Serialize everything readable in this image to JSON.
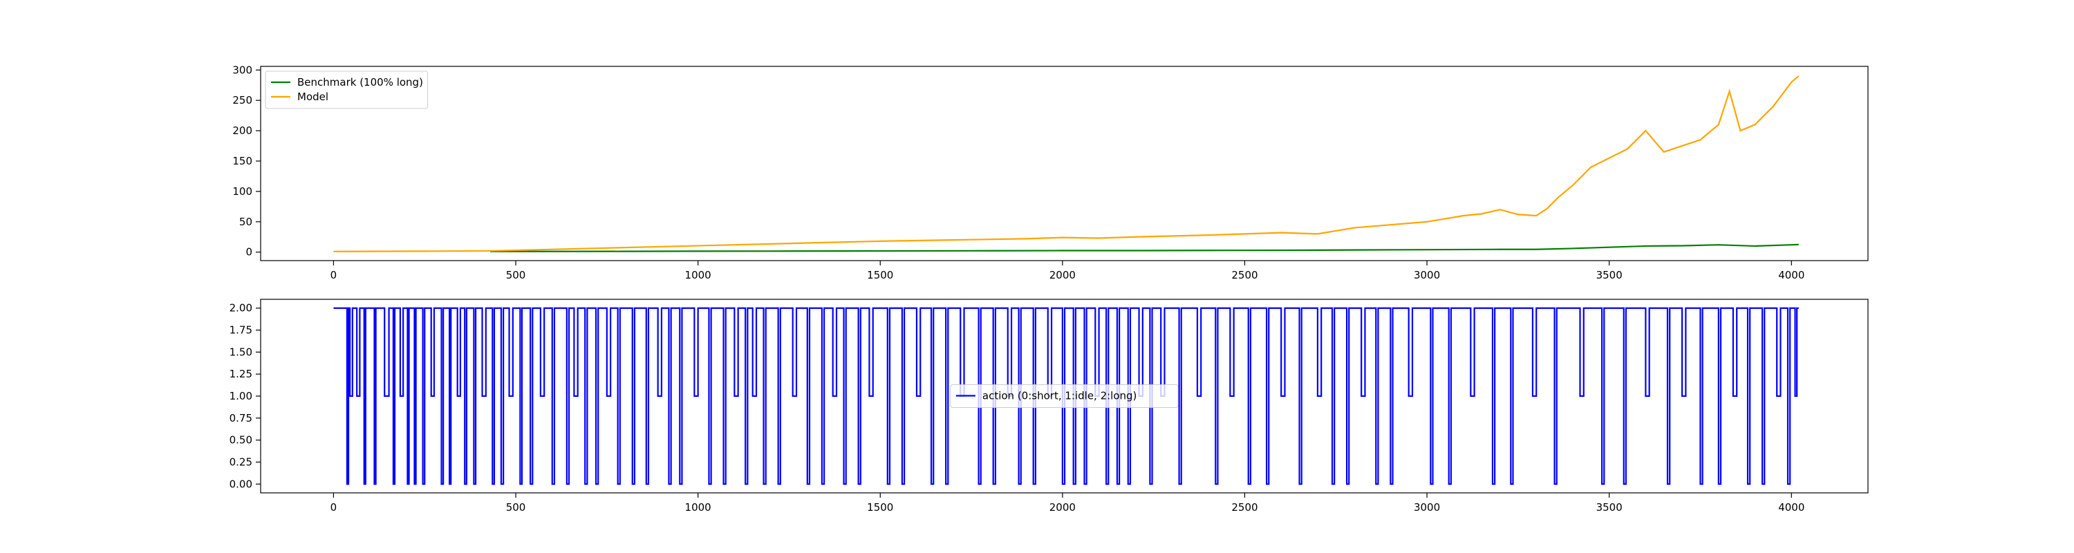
{
  "chart_data": [
    {
      "type": "line",
      "title": "",
      "xlabel": "",
      "ylabel": "",
      "xlim": [
        -200,
        4210
      ],
      "ylim": [
        -14,
        306
      ],
      "xticks": [
        0,
        500,
        1000,
        1500,
        2000,
        2500,
        3000,
        3500,
        4000
      ],
      "yticks": [
        0,
        50,
        100,
        150,
        200,
        250,
        300
      ],
      "grid": false,
      "legend_position": "upper-left",
      "series": [
        {
          "name": "Benchmark (100% long)",
          "color": "#008000",
          "x_start": 430,
          "x": [
            430,
            600,
            800,
            1000,
            1200,
            1400,
            1600,
            1800,
            2000,
            2200,
            2400,
            2600,
            2800,
            3000,
            3200,
            3300,
            3400,
            3500,
            3600,
            3700,
            3800,
            3850,
            3900,
            4000,
            4020
          ],
          "y": [
            1,
            1.1,
            1.2,
            1.5,
            1.6,
            1.8,
            2,
            2.2,
            2.5,
            2.5,
            2.8,
            3,
            3.5,
            4,
            4.5,
            4.5,
            6,
            8,
            10,
            10.5,
            12,
            11,
            10,
            12,
            12.5
          ]
        },
        {
          "name": "Model",
          "color": "#ffa500",
          "x": [
            0,
            250,
            430,
            500,
            700,
            900,
            1100,
            1300,
            1500,
            1700,
            1900,
            2000,
            2100,
            2200,
            2400,
            2500,
            2600,
            2700,
            2800,
            2900,
            3000,
            3050,
            3100,
            3150,
            3200,
            3250,
            3300,
            3330,
            3360,
            3400,
            3450,
            3500,
            3550,
            3600,
            3650,
            3700,
            3750,
            3800,
            3830,
            3860,
            3900,
            3950,
            4000,
            4020
          ],
          "y": [
            1,
            1.5,
            2,
            3,
            6,
            9,
            12,
            15,
            18,
            20,
            22,
            24,
            23,
            25,
            28,
            30,
            32,
            30,
            40,
            45,
            50,
            55,
            60,
            63,
            70,
            62,
            60,
            72,
            90,
            110,
            140,
            155,
            170,
            200,
            165,
            175,
            185,
            210,
            265,
            200,
            210,
            240,
            280,
            290
          ]
        }
      ]
    },
    {
      "type": "line",
      "step": true,
      "title": "",
      "xlabel": "",
      "ylabel": "",
      "xlim": [
        -200,
        4210
      ],
      "ylim": [
        -0.1,
        2.1
      ],
      "xticks": [
        0,
        500,
        1000,
        1500,
        2000,
        2500,
        3000,
        3500,
        4000
      ],
      "yticks": [
        0.0,
        0.25,
        0.5,
        0.75,
        1.0,
        1.25,
        1.5,
        1.75,
        2.0
      ],
      "ytick_labels": [
        "0.00",
        "0.25",
        "0.50",
        "0.75",
        "1.00",
        "1.25",
        "1.50",
        "1.75",
        "2.00"
      ],
      "grid": false,
      "legend_position": "center",
      "series": [
        {
          "name": "action (0:short, 1:idle, 2:long)",
          "color": "#0000ff",
          "x_start": 0,
          "x_end": 4020,
          "switches": [
            [
              0,
              2
            ],
            [
              37,
              0
            ],
            [
              41,
              2
            ],
            [
              45,
              1
            ],
            [
              52,
              2
            ],
            [
              64,
              1
            ],
            [
              72,
              2
            ],
            [
              84,
              0
            ],
            [
              88,
              2
            ],
            [
              112,
              0
            ],
            [
              116,
              2
            ],
            [
              140,
              1
            ],
            [
              152,
              2
            ],
            [
              164,
              0
            ],
            [
              168,
              2
            ],
            [
              183,
              1
            ],
            [
              191,
              2
            ],
            [
              203,
              0
            ],
            [
              207,
              2
            ],
            [
              222,
              0
            ],
            [
              226,
              2
            ],
            [
              245,
              0
            ],
            [
              250,
              2
            ],
            [
              268,
              1
            ],
            [
              276,
              2
            ],
            [
              296,
              0
            ],
            [
              301,
              2
            ],
            [
              318,
              0
            ],
            [
              322,
              2
            ],
            [
              340,
              1
            ],
            [
              348,
              2
            ],
            [
              360,
              0
            ],
            [
              365,
              2
            ],
            [
              385,
              0
            ],
            [
              390,
              2
            ],
            [
              408,
              1
            ],
            [
              418,
              2
            ],
            [
              436,
              0
            ],
            [
              441,
              2
            ],
            [
              460,
              0
            ],
            [
              466,
              2
            ],
            [
              482,
              1
            ],
            [
              492,
              2
            ],
            [
              512,
              0
            ],
            [
              517,
              2
            ],
            [
              540,
              0
            ],
            [
              546,
              2
            ],
            [
              568,
              1
            ],
            [
              578,
              2
            ],
            [
              600,
              0
            ],
            [
              606,
              2
            ],
            [
              640,
              0
            ],
            [
              646,
              2
            ],
            [
              660,
              1
            ],
            [
              670,
              2
            ],
            [
              690,
              0
            ],
            [
              696,
              2
            ],
            [
              720,
              0
            ],
            [
              726,
              2
            ],
            [
              750,
              1
            ],
            [
              760,
              2
            ],
            [
              780,
              0
            ],
            [
              786,
              2
            ],
            [
              820,
              0
            ],
            [
              826,
              2
            ],
            [
              858,
              0
            ],
            [
              864,
              2
            ],
            [
              890,
              1
            ],
            [
              900,
              2
            ],
            [
              920,
              0
            ],
            [
              926,
              2
            ],
            [
              950,
              0
            ],
            [
              956,
              2
            ],
            [
              990,
              1
            ],
            [
              1000,
              2
            ],
            [
              1030,
              0
            ],
            [
              1036,
              2
            ],
            [
              1070,
              0
            ],
            [
              1076,
              2
            ],
            [
              1100,
              1
            ],
            [
              1110,
              2
            ],
            [
              1130,
              0
            ],
            [
              1136,
              2
            ],
            [
              1150,
              1
            ],
            [
              1160,
              2
            ],
            [
              1180,
              0
            ],
            [
              1186,
              2
            ],
            [
              1220,
              0
            ],
            [
              1226,
              2
            ],
            [
              1260,
              1
            ],
            [
              1270,
              2
            ],
            [
              1300,
              0
            ],
            [
              1306,
              2
            ],
            [
              1340,
              0
            ],
            [
              1346,
              2
            ],
            [
              1370,
              1
            ],
            [
              1380,
              2
            ],
            [
              1400,
              0
            ],
            [
              1406,
              2
            ],
            [
              1440,
              0
            ],
            [
              1446,
              2
            ],
            [
              1470,
              1
            ],
            [
              1480,
              2
            ],
            [
              1520,
              0
            ],
            [
              1526,
              2
            ],
            [
              1560,
              0
            ],
            [
              1566,
              2
            ],
            [
              1600,
              1
            ],
            [
              1610,
              2
            ],
            [
              1640,
              0
            ],
            [
              1646,
              2
            ],
            [
              1680,
              0
            ],
            [
              1686,
              2
            ],
            [
              1720,
              1
            ],
            [
              1730,
              2
            ],
            [
              1770,
              0
            ],
            [
              1776,
              2
            ],
            [
              1810,
              0
            ],
            [
              1816,
              2
            ],
            [
              1850,
              1
            ],
            [
              1860,
              2
            ],
            [
              1880,
              0
            ],
            [
              1886,
              2
            ],
            [
              1920,
              0
            ],
            [
              1926,
              2
            ],
            [
              1960,
              1
            ],
            [
              1970,
              2
            ],
            [
              2000,
              0
            ],
            [
              2006,
              2
            ],
            [
              2030,
              0
            ],
            [
              2036,
              2
            ],
            [
              2060,
              0
            ],
            [
              2066,
              2
            ],
            [
              2090,
              1
            ],
            [
              2100,
              2
            ],
            [
              2120,
              0
            ],
            [
              2126,
              2
            ],
            [
              2150,
              0
            ],
            [
              2156,
              2
            ],
            [
              2180,
              0
            ],
            [
              2186,
              2
            ],
            [
              2210,
              1
            ],
            [
              2220,
              2
            ],
            [
              2240,
              0
            ],
            [
              2246,
              2
            ],
            [
              2270,
              1
            ],
            [
              2280,
              2
            ],
            [
              2320,
              0
            ],
            [
              2326,
              2
            ],
            [
              2370,
              1
            ],
            [
              2380,
              2
            ],
            [
              2420,
              0
            ],
            [
              2426,
              2
            ],
            [
              2460,
              1
            ],
            [
              2470,
              2
            ],
            [
              2510,
              0
            ],
            [
              2516,
              2
            ],
            [
              2560,
              0
            ],
            [
              2566,
              2
            ],
            [
              2600,
              1
            ],
            [
              2610,
              2
            ],
            [
              2650,
              0
            ],
            [
              2656,
              2
            ],
            [
              2700,
              1
            ],
            [
              2710,
              2
            ],
            [
              2740,
              0
            ],
            [
              2746,
              2
            ],
            [
              2780,
              0
            ],
            [
              2786,
              2
            ],
            [
              2820,
              1
            ],
            [
              2830,
              2
            ],
            [
              2860,
              0
            ],
            [
              2866,
              2
            ],
            [
              2900,
              0
            ],
            [
              2906,
              2
            ],
            [
              2950,
              1
            ],
            [
              2960,
              2
            ],
            [
              3010,
              0
            ],
            [
              3016,
              2
            ],
            [
              3060,
              0
            ],
            [
              3066,
              2
            ],
            [
              3120,
              1
            ],
            [
              3130,
              2
            ],
            [
              3180,
              0
            ],
            [
              3186,
              2
            ],
            [
              3230,
              0
            ],
            [
              3236,
              2
            ],
            [
              3290,
              1
            ],
            [
              3300,
              2
            ],
            [
              3350,
              0
            ],
            [
              3356,
              2
            ],
            [
              3420,
              1
            ],
            [
              3430,
              2
            ],
            [
              3480,
              0
            ],
            [
              3486,
              2
            ],
            [
              3540,
              0
            ],
            [
              3546,
              2
            ],
            [
              3600,
              1
            ],
            [
              3610,
              2
            ],
            [
              3660,
              0
            ],
            [
              3666,
              2
            ],
            [
              3700,
              1
            ],
            [
              3710,
              2
            ],
            [
              3750,
              0
            ],
            [
              3756,
              2
            ],
            [
              3800,
              0
            ],
            [
              3806,
              2
            ],
            [
              3840,
              1
            ],
            [
              3850,
              2
            ],
            [
              3880,
              0
            ],
            [
              3886,
              2
            ],
            [
              3920,
              0
            ],
            [
              3926,
              2
            ],
            [
              3960,
              1
            ],
            [
              3970,
              2
            ],
            [
              3990,
              0
            ],
            [
              3996,
              2
            ],
            [
              4010,
              1
            ],
            [
              4015,
              2
            ]
          ]
        }
      ]
    }
  ]
}
